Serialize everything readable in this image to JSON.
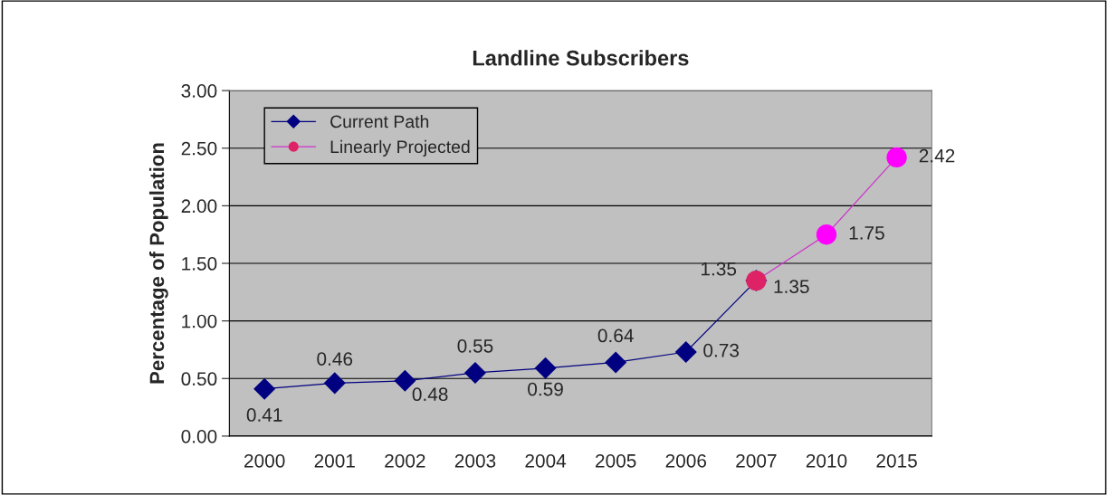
{
  "chart_data": {
    "type": "line",
    "title": "Landline Subscribers",
    "ylabel": "Percentage of Population",
    "categories": [
      "2000",
      "2001",
      "2002",
      "2003",
      "2004",
      "2005",
      "2006",
      "2007",
      "2010",
      "2015"
    ],
    "series": [
      {
        "name": "Current Path",
        "color": "#000080",
        "marker": "diamond",
        "values": [
          0.41,
          0.46,
          0.48,
          0.55,
          0.59,
          0.64,
          0.73,
          1.35,
          null,
          null
        ]
      },
      {
        "name": "Linearly Projected",
        "color": "#cc33cc",
        "marker": "circle",
        "colors": [
          null,
          null,
          null,
          null,
          null,
          null,
          null,
          "#dd2266",
          "#ff00ff",
          "#ff00ff"
        ],
        "values": [
          null,
          null,
          null,
          null,
          null,
          null,
          null,
          1.35,
          1.75,
          2.42
        ]
      }
    ],
    "ylim": [
      0,
      3
    ],
    "yticks": [
      {
        "value": 0,
        "label": "0.00"
      },
      {
        "value": 0.5,
        "label": "0.50"
      },
      {
        "value": 1,
        "label": "1.00"
      },
      {
        "value": 1.5,
        "label": "1.50"
      },
      {
        "value": 2,
        "label": "2.00"
      },
      {
        "value": 2.5,
        "label": "2.50"
      },
      {
        "value": 3,
        "label": "3.00"
      }
    ],
    "grid": "y",
    "legend": "top left",
    "data_labels": true
  }
}
